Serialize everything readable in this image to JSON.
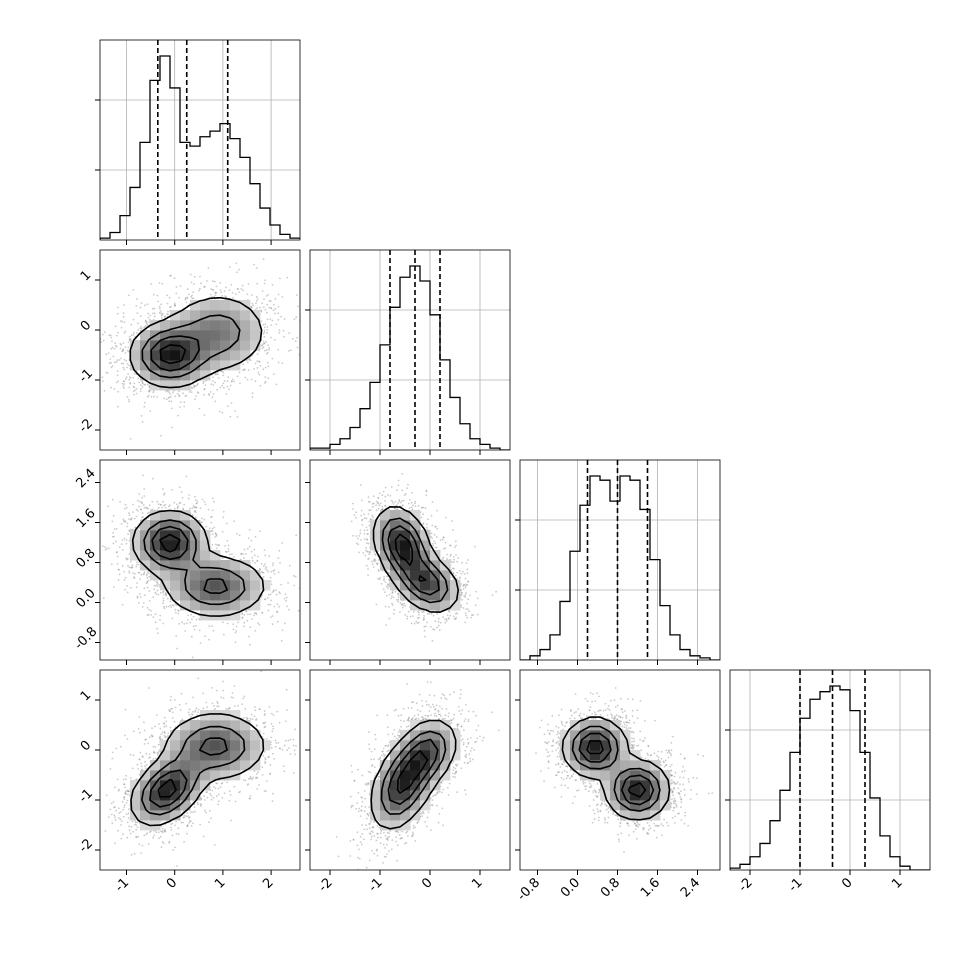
{
  "chart_data": {
    "type": "corner",
    "grid": true,
    "colors": {
      "hist": "#000000",
      "contour": "#000000",
      "points": "#8c8c8c",
      "grid": "#b0b0b0"
    },
    "params": [
      {
        "range": [
          -1.55,
          2.6
        ],
        "ticks": [
          "-1",
          "0",
          "1",
          "2"
        ],
        "tick_values": [
          -1,
          0,
          1,
          2
        ],
        "quantiles": [
          -0.35,
          0.25,
          1.1
        ]
      },
      {
        "range": [
          -2.4,
          1.6
        ],
        "ticks": [
          "-2",
          "-1",
          "0",
          "1"
        ],
        "tick_values": [
          -2,
          -1,
          0,
          1
        ],
        "quantiles": [
          -0.8,
          -0.3,
          0.2
        ]
      },
      {
        "range": [
          -1.15,
          2.85
        ],
        "ticks": [
          "-0.8",
          "0.0",
          "0.8",
          "1.6",
          "2.4"
        ],
        "tick_values": [
          -0.8,
          0,
          0.8,
          1.6,
          2.4
        ],
        "quantiles": [
          0.2,
          0.8,
          1.4
        ]
      },
      {
        "range": [
          -2.4,
          1.6
        ],
        "ticks": [
          "-2",
          "-1",
          "0",
          "1"
        ],
        "tick_values": [
          -2,
          -1,
          0,
          1
        ],
        "quantiles": [
          -1.0,
          -0.35,
          0.3
        ]
      }
    ],
    "histograms": [
      {
        "edges_start": -1.55,
        "bin_width": 0.2075,
        "counts": [
          1,
          4,
          13,
          28,
          52,
          85,
          98,
          81,
          52,
          50,
          55,
          58,
          62,
          54,
          44,
          30,
          17,
          8,
          3,
          1
        ]
      },
      {
        "edges_start": -2.4,
        "bin_width": 0.2,
        "counts": [
          1,
          1,
          3,
          6,
          12,
          22,
          36,
          56,
          76,
          92,
          98,
          90,
          72,
          48,
          28,
          14,
          6,
          3,
          1,
          0
        ]
      },
      {
        "edges_start": -1.15,
        "bin_width": 0.2,
        "counts": [
          0,
          2,
          5,
          12,
          28,
          52,
          74,
          88,
          86,
          76,
          88,
          86,
          72,
          48,
          26,
          12,
          5,
          2,
          1,
          0
        ]
      },
      {
        "edges_start": -2.4,
        "bin_width": 0.2,
        "counts": [
          1,
          3,
          7,
          14,
          26,
          42,
          62,
          80,
          90,
          94,
          97,
          95,
          84,
          62,
          38,
          18,
          7,
          2,
          0,
          0
        ]
      }
    ],
    "pairs": [
      {
        "x": 0,
        "y": 1,
        "modes": [
          [
            -0.1,
            -0.5,
            0.42,
            0.32,
            0.0,
            1.0
          ],
          [
            0.9,
            -0.05,
            0.55,
            0.42,
            0.0,
            0.55
          ]
        ]
      },
      {
        "x": 0,
        "y": 2,
        "modes": [
          [
            -0.1,
            1.2,
            0.38,
            0.32,
            0.0,
            1.0
          ],
          [
            0.85,
            0.32,
            0.55,
            0.32,
            0.0,
            0.7
          ]
        ]
      },
      {
        "x": 1,
        "y": 2,
        "modes": [
          [
            -0.55,
            1.15,
            0.28,
            0.38,
            -0.3,
            1.0
          ],
          [
            -0.05,
            0.38,
            0.32,
            0.3,
            -0.3,
            0.8
          ]
        ]
      },
      {
        "x": 0,
        "y": 3,
        "modes": [
          [
            -0.15,
            -0.8,
            0.38,
            0.35,
            0.4,
            1.0
          ],
          [
            0.85,
            0.08,
            0.55,
            0.35,
            0.0,
            0.7
          ]
        ]
      },
      {
        "x": 1,
        "y": 3,
        "modes": [
          [
            -0.55,
            -0.7,
            0.32,
            0.45,
            0.4,
            1.0
          ],
          [
            -0.05,
            -0.05,
            0.3,
            0.35,
            0.3,
            0.8
          ]
        ]
      },
      {
        "x": 2,
        "y": 3,
        "modes": [
          [
            0.35,
            0.05,
            0.32,
            0.3,
            0.0,
            1.0
          ],
          [
            1.2,
            -0.8,
            0.32,
            0.3,
            0.0,
            1.0
          ]
        ]
      }
    ]
  }
}
